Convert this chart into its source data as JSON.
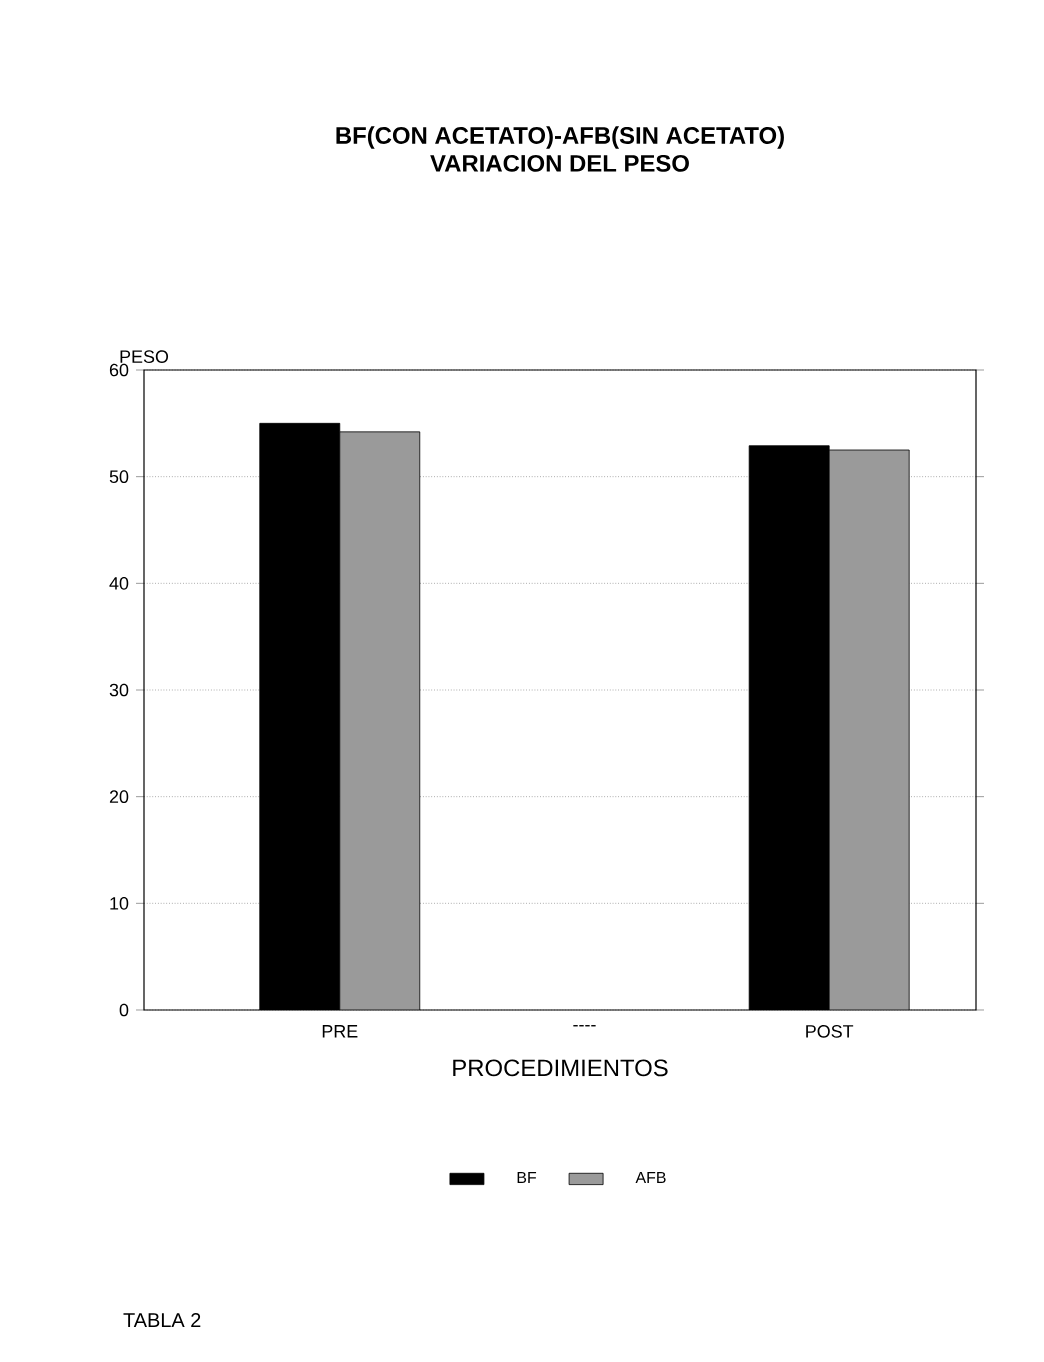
{
  "chart_data": {
    "type": "bar",
    "title": "BF(CON ACETATO)-AFB(SIN ACETATO)",
    "subtitle": "VARIACION DEL PESO",
    "xlabel": "PROCEDIMIENTOS",
    "ylabel": "PESO",
    "categories": [
      "PRE",
      "----",
      "POST"
    ],
    "series": [
      {
        "name": "BF",
        "color": "#000000",
        "values": [
          55.0,
          null,
          52.9
        ]
      },
      {
        "name": "AFB",
        "color": "#9a9a9a",
        "values": [
          54.2,
          null,
          52.5
        ]
      }
    ],
    "ylim": [
      0,
      60
    ],
    "yticks": [
      0,
      10,
      20,
      30,
      40,
      50,
      60
    ],
    "grid": "y",
    "legend": "bottom",
    "annotations": [
      "TABLA 2"
    ]
  }
}
